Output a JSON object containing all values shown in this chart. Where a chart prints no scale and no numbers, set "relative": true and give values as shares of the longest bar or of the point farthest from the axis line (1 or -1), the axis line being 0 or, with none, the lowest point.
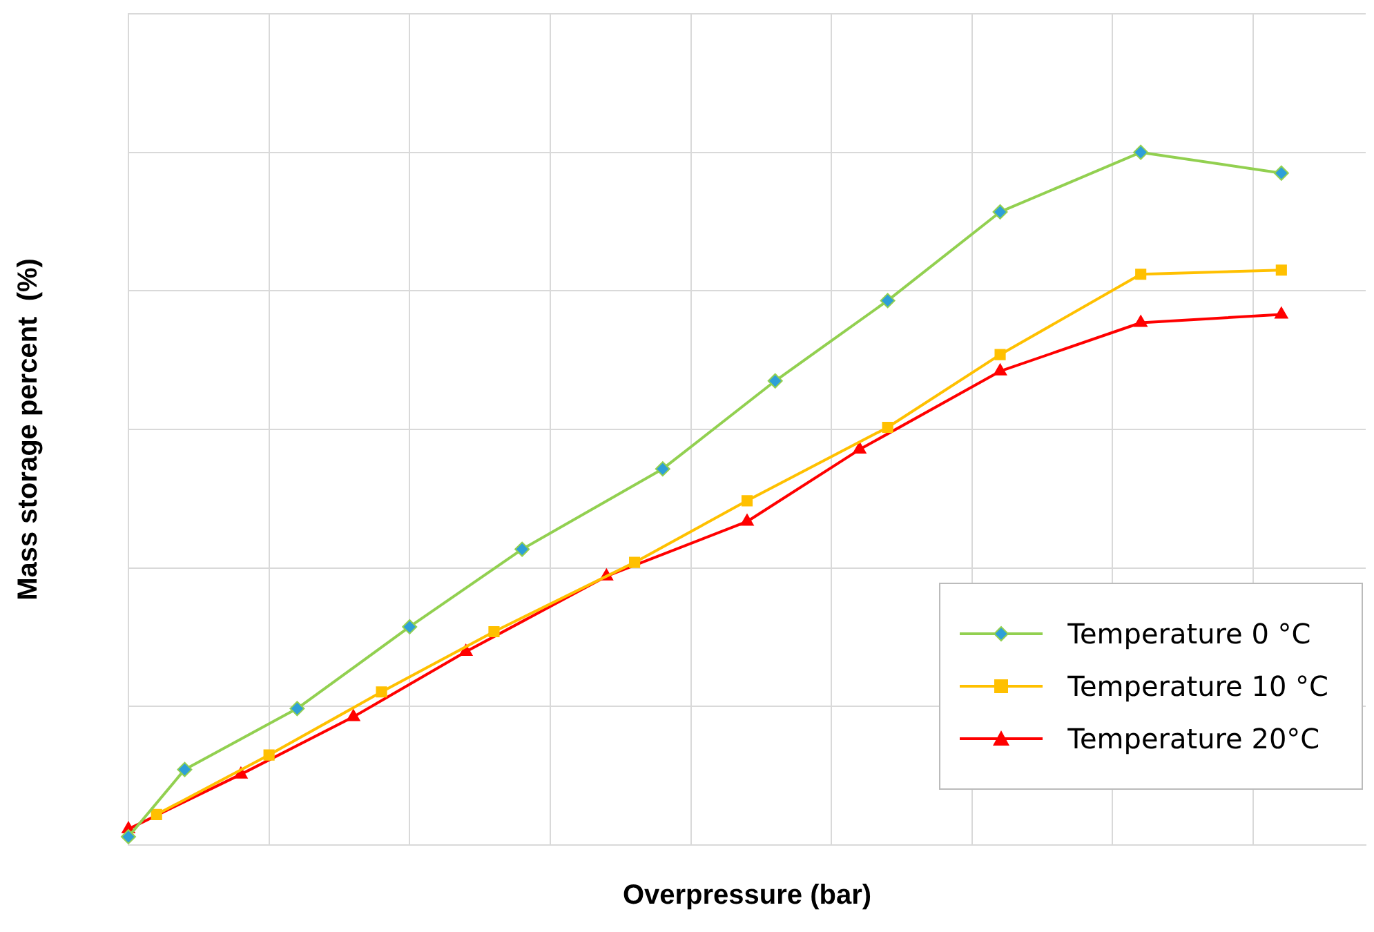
{
  "chart_data": {
    "type": "line",
    "xlabel": "Overpressure (bar)",
    "ylabel": "Mass storage percent  (%)",
    "relative": true,
    "tick_labels": false,
    "grid": true,
    "legend": "bottom right",
    "line_style": "solid",
    "categories": [
      null,
      null,
      null,
      null,
      null,
      null,
      null,
      null,
      null,
      null,
      null,
      null,
      null,
      null,
      null,
      null,
      null,
      null,
      null,
      null,
      null,
      null,
      null,
      null,
      null,
      null,
      null,
      null,
      null,
      null,
      null,
      null,
      null,
      null,
      null,
      null,
      null,
      null,
      null,
      null,
      null,
      null,
      null,
      null,
      null
    ],
    "series": [
      {
        "name": "Temperature 0 °C",
        "color": "#92d050",
        "marker": "diamond",
        "values": [
          0.012,
          null,
          0.109,
          null,
          null,
          null,
          0.197,
          null,
          null,
          null,
          0.315,
          null,
          null,
          null,
          0.427,
          null,
          null,
          null,
          null,
          0.543,
          null,
          null,
          null,
          0.67,
          null,
          null,
          null,
          0.786,
          null,
          null,
          null,
          0.914,
          null,
          null,
          null,
          null,
          1,
          null,
          null,
          null,
          null,
          0.97,
          null,
          null,
          null
        ]
      },
      {
        "name": "Temperature 10 °C",
        "color": "#ffc000",
        "marker": "square",
        "values": [
          null,
          0.044,
          null,
          null,
          null,
          0.13,
          null,
          null,
          null,
          0.221,
          null,
          null,
          null,
          0.308,
          null,
          null,
          null,
          null,
          0.408,
          null,
          null,
          null,
          0.497,
          null,
          null,
          null,
          null,
          0.603,
          null,
          null,
          null,
          0.708,
          null,
          null,
          null,
          null,
          0.824,
          null,
          null,
          null,
          null,
          0.83,
          null,
          null,
          null
        ]
      },
      {
        "name": "Temperature 20°C",
        "color": "#ff0000",
        "marker": "triangle",
        "values": [
          0.023,
          null,
          null,
          null,
          0.102,
          null,
          null,
          null,
          0.185,
          null,
          null,
          null,
          0.279,
          null,
          null,
          null,
          null,
          0.388,
          null,
          null,
          null,
          null,
          0.467,
          null,
          null,
          null,
          0.571,
          null,
          null,
          null,
          null,
          0.684,
          null,
          null,
          null,
          null,
          0.754,
          null,
          null,
          null,
          null,
          0.766,
          null,
          null,
          null
        ]
      }
    ]
  }
}
